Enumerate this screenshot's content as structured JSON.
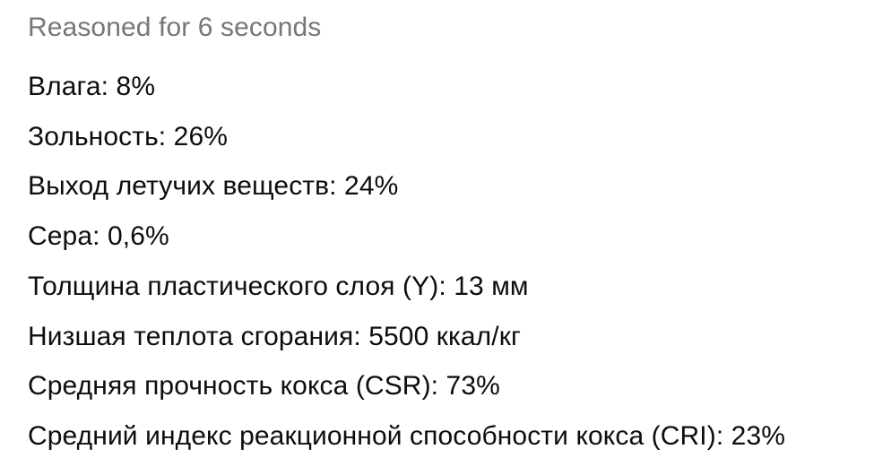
{
  "reasoning": {
    "label": "Reasoned for 6 seconds"
  },
  "message": {
    "lines": [
      "Влага: 8%",
      "Зольность: 26%",
      "Выход летучих веществ: 24%",
      "Сера: 0,6%",
      "Толщина пластического слоя (Y): 13 мм",
      "Низшая теплота сгорания: 5500 ккал/кг",
      "Средняя прочность кокса (CSR): 73%",
      "Средний индекс реакционной способности кокса (CRI): 23%"
    ]
  },
  "colors": {
    "background": "#ffffff",
    "header_text": "#76767b",
    "body_text": "#0d0d0d"
  }
}
